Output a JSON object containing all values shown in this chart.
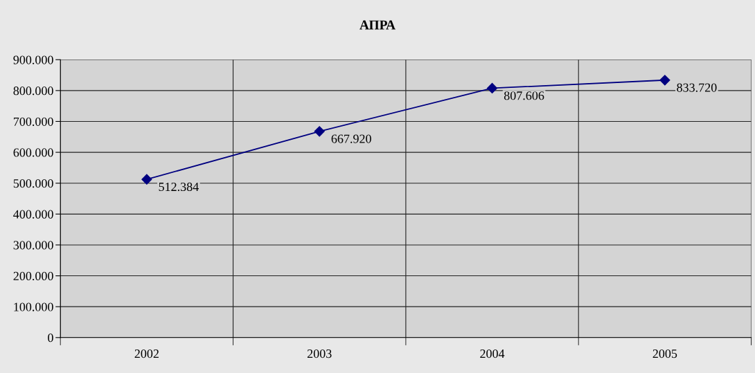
{
  "chart_data": {
    "type": "line",
    "title": "АПРА",
    "categories": [
      "2002",
      "2003",
      "2004",
      "2005"
    ],
    "series": [
      {
        "color": "#000080",
        "values": [
          512384,
          667920,
          807606,
          833720
        ],
        "value_labels": [
          "512.384",
          "667.920",
          "807.606",
          "833.720"
        ]
      }
    ],
    "ylim": [
      0,
      900000
    ],
    "yticks": [
      {
        "value": 0,
        "label": "0"
      },
      {
        "value": 100000,
        "label": "100.000"
      },
      {
        "value": 200000,
        "label": "200.000"
      },
      {
        "value": 300000,
        "label": "300.000"
      },
      {
        "value": 400000,
        "label": "400.000"
      },
      {
        "value": 500000,
        "label": "500.000"
      },
      {
        "value": 600000,
        "label": "600.000"
      },
      {
        "value": 700000,
        "label": "700.000"
      },
      {
        "value": 800000,
        "label": "800.000"
      },
      {
        "value": 900000,
        "label": "900.000"
      }
    ],
    "grid": true,
    "marker": "diamond",
    "line_style": "solid",
    "legend": false
  }
}
